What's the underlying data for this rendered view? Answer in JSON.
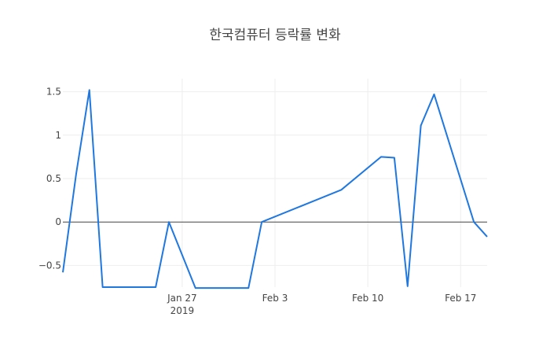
{
  "chart_data": {
    "type": "line",
    "title": "한국컴퓨터 등락률 변화",
    "xlabel": "",
    "ylabel": "",
    "x_range": [
      "2019-01-18",
      "2019-02-19"
    ],
    "ylim": [
      -0.75,
      1.65
    ],
    "x_ticks": [
      {
        "date": "2019-01-27",
        "label": "Jan 27",
        "sublabel": "2019"
      },
      {
        "date": "2019-02-03",
        "label": "Feb 3",
        "sublabel": ""
      },
      {
        "date": "2019-02-10",
        "label": "Feb 10",
        "sublabel": ""
      },
      {
        "date": "2019-02-17",
        "label": "Feb 17",
        "sublabel": ""
      }
    ],
    "y_ticks": [
      {
        "value": 1.5,
        "label": "1.5"
      },
      {
        "value": 1,
        "label": "1"
      },
      {
        "value": 0.5,
        "label": "0.5"
      },
      {
        "value": 0,
        "label": "0"
      },
      {
        "value": -0.5,
        "label": "−0.5"
      }
    ],
    "grid": true,
    "legend": "none",
    "color": "#1f77e0",
    "series": [
      {
        "name": "",
        "x": [
          "2019-01-18",
          "2019-01-19",
          "2019-01-20",
          "2019-01-21",
          "2019-01-25",
          "2019-01-26",
          "2019-01-28",
          "2019-01-29",
          "2019-02-01",
          "2019-02-02",
          "2019-02-08",
          "2019-02-11",
          "2019-02-12",
          "2019-02-13",
          "2019-02-14",
          "2019-02-15",
          "2019-02-18",
          "2019-02-19"
        ],
        "y": [
          -0.58,
          0.55,
          1.52,
          -0.75,
          -0.75,
          0,
          -0.76,
          -0.76,
          -0.76,
          0,
          0.37,
          0.75,
          0.74,
          -0.74,
          1.11,
          1.47,
          0,
          -0.17
        ]
      }
    ]
  }
}
